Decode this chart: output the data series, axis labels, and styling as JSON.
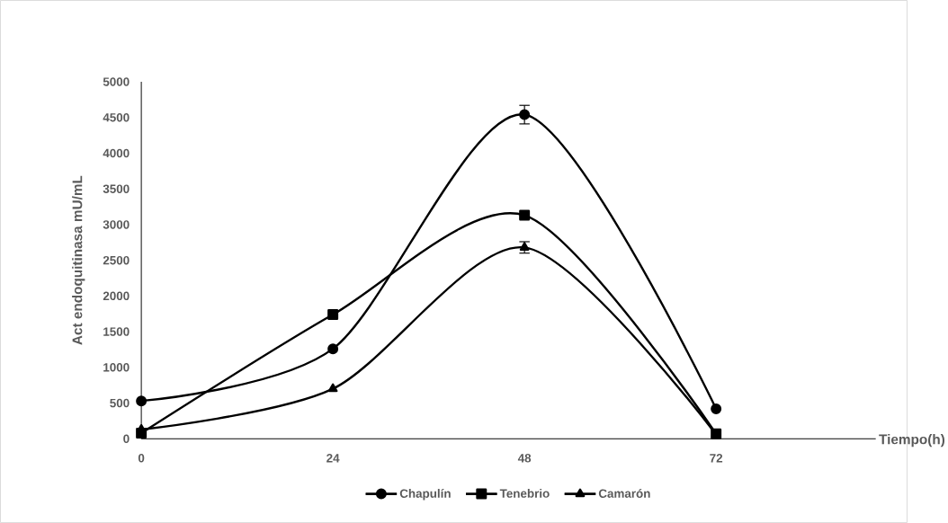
{
  "chart_data": {
    "type": "line",
    "xlabel": "Tiempo(h)",
    "ylabel": "Act endoquitinasa  mU/mL",
    "x": [
      0,
      24,
      48,
      72
    ],
    "xlim": [
      0,
      92
    ],
    "xticks": [
      0,
      24,
      48,
      72
    ],
    "ylim": [
      0,
      5000
    ],
    "yticks": [
      0,
      500,
      1000,
      1500,
      2000,
      2500,
      3000,
      3500,
      4000,
      4500,
      5000
    ],
    "series": [
      {
        "name": "Chapulín",
        "color": "#000000",
        "marker": "circle",
        "values": [
          530,
          1260,
          4540,
          420
        ],
        "errors": [
          null,
          null,
          130,
          null
        ]
      },
      {
        "name": "Tenebrio",
        "color": "#000000",
        "marker": "square",
        "values": [
          80,
          1740,
          3130,
          70
        ]
      },
      {
        "name": "Camarón",
        "color": "#000000",
        "marker": "triangle",
        "values": [
          130,
          700,
          2680,
          60
        ],
        "errors": [
          null,
          null,
          80,
          null
        ]
      }
    ],
    "grid": false,
    "legend": "bottom",
    "line_style": "solid"
  }
}
